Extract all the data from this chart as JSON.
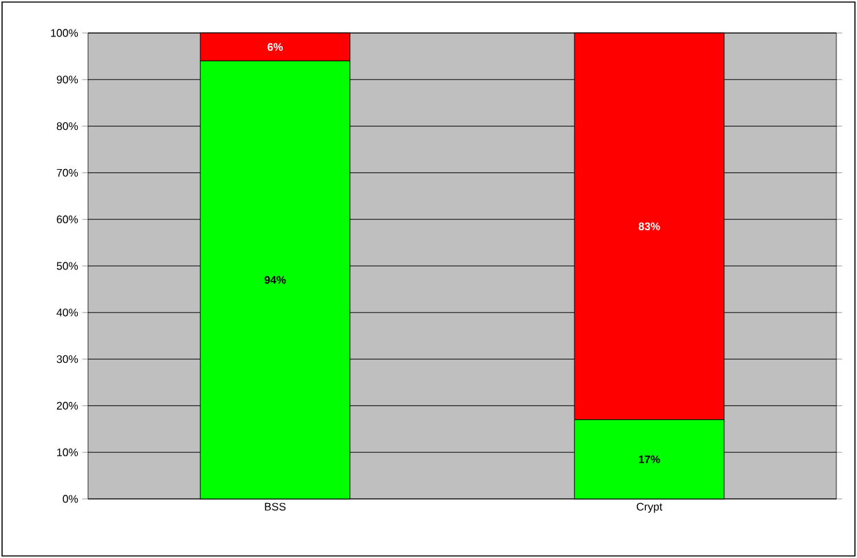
{
  "chart_data": {
    "type": "bar",
    "stacked": true,
    "categories": [
      "BSS",
      "Crypt"
    ],
    "series": [
      {
        "color": "#00ff00",
        "values": [
          94,
          17
        ],
        "value_labels": [
          "94%",
          "17%"
        ]
      },
      {
        "color": "#ff0000",
        "values": [
          6,
          83
        ],
        "value_labels": [
          "6%",
          "83%"
        ]
      }
    ],
    "ylim": [
      0,
      100
    ],
    "yticks": [
      {
        "value": 0,
        "label": "0%"
      },
      {
        "value": 10,
        "label": "10%"
      },
      {
        "value": 20,
        "label": "20%"
      },
      {
        "value": 30,
        "label": "30%"
      },
      {
        "value": 40,
        "label": "40%"
      },
      {
        "value": 50,
        "label": "50%"
      },
      {
        "value": 60,
        "label": "60%"
      },
      {
        "value": 70,
        "label": "70%"
      },
      {
        "value": 80,
        "label": "80%"
      },
      {
        "value": 90,
        "label": "90%"
      },
      {
        "value": 100,
        "label": "100%"
      }
    ],
    "grid": "y"
  }
}
